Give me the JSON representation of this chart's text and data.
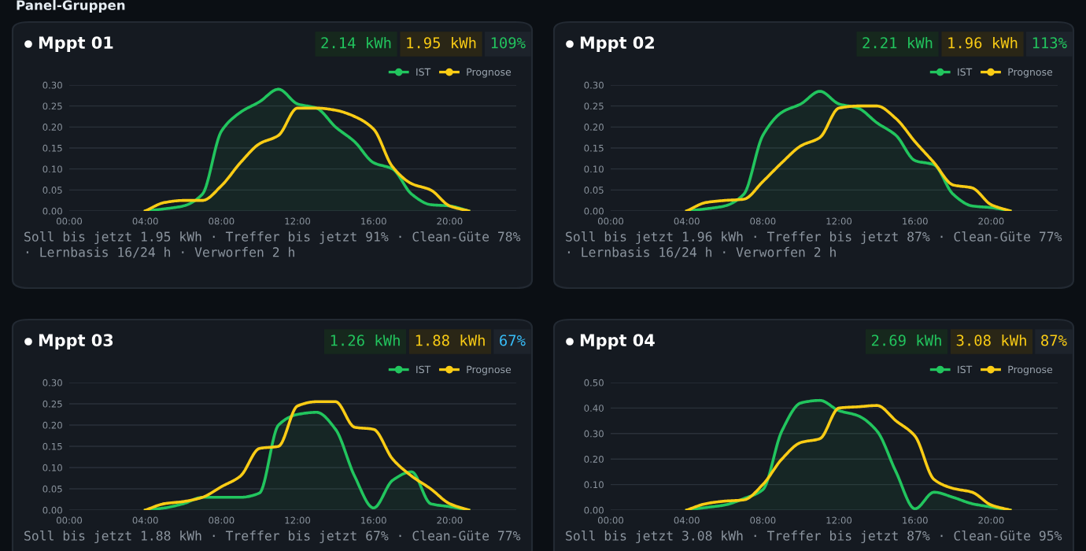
{
  "chart_data": [
    {
      "type": "line",
      "title": "Mppt 01",
      "annotations": [
        "Panel-Gruppen",
        "2.14 kWh",
        "1.95 kWh",
        "109%",
        "Soll bis jetzt 1.95 kWh · Treffer bis jetzt 91% · Clean-Güte 78% · Lernbasis 16/24 h · Verworfen 2 h"
      ],
      "x": [
        4,
        5,
        6,
        7,
        8,
        9,
        10,
        11,
        12,
        13,
        14,
        15,
        16,
        17,
        18,
        19,
        20,
        21
      ],
      "series": [
        {
          "name": "IST",
          "type": "area",
          "color": "#22c55e",
          "values": [
            0,
            0.005,
            0.012,
            0.04,
            0.19,
            0.235,
            0.26,
            0.29,
            0.255,
            0.245,
            0.2,
            0.165,
            0.115,
            0.1,
            0.04,
            0.015,
            0.012,
            0
          ]
        },
        {
          "name": "Prognose",
          "color": "#facc15",
          "values": [
            0,
            0.02,
            0.025,
            0.025,
            0.06,
            0.115,
            0.16,
            0.18,
            0.245,
            0.245,
            0.24,
            0.225,
            0.195,
            0.105,
            0.065,
            0.05,
            0.012,
            0
          ]
        }
      ],
      "xlim": [
        0,
        23.5
      ],
      "xticks": [
        {
          "value": 0,
          "label": "00:00"
        },
        {
          "value": 4,
          "label": "04:00"
        },
        {
          "value": 8,
          "label": "08:00"
        },
        {
          "value": 12,
          "label": "12:00"
        },
        {
          "value": 16,
          "label": "16:00"
        },
        {
          "value": 20,
          "label": "20:00"
        }
      ],
      "ylim": [
        0,
        0.3
      ],
      "yticks": [
        {
          "value": 0,
          "label": "0.00"
        },
        {
          "value": 0.05,
          "label": "0.05"
        },
        {
          "value": 0.1,
          "label": "0.10"
        },
        {
          "value": 0.15,
          "label": "0.15"
        },
        {
          "value": 0.2,
          "label": "0.20"
        },
        {
          "value": 0.25,
          "label": "0.25"
        },
        {
          "value": 0.3,
          "label": "0.30"
        }
      ],
      "grid": "y",
      "legend": "top right"
    },
    {
      "type": "line",
      "title": "Mppt 02",
      "annotations": [
        "2.21 kWh",
        "1.96 kWh",
        "113%",
        "Soll bis jetzt 1.96 kWh · Treffer bis jetzt 87% · Clean-Güte 77% · Lernbasis 16/24 h · Verworfen 2 h"
      ],
      "x": [
        4,
        5,
        6,
        7,
        8,
        9,
        10,
        11,
        12,
        13,
        14,
        15,
        16,
        17,
        18,
        19,
        20,
        21
      ],
      "series": [
        {
          "name": "IST",
          "type": "area",
          "color": "#22c55e",
          "values": [
            0,
            0.005,
            0.012,
            0.04,
            0.18,
            0.235,
            0.255,
            0.285,
            0.255,
            0.245,
            0.21,
            0.18,
            0.12,
            0.11,
            0.04,
            0.012,
            0.008,
            0
          ]
        },
        {
          "name": "Prognose",
          "color": "#facc15",
          "values": [
            0,
            0.02,
            0.025,
            0.028,
            0.07,
            0.115,
            0.155,
            0.175,
            0.245,
            0.25,
            0.25,
            0.22,
            0.165,
            0.115,
            0.062,
            0.055,
            0.015,
            0
          ]
        }
      ],
      "xlim": [
        0,
        23.5
      ],
      "xticks": [
        {
          "value": 0,
          "label": "00:00"
        },
        {
          "value": 4,
          "label": "04:00"
        },
        {
          "value": 8,
          "label": "08:00"
        },
        {
          "value": 12,
          "label": "12:00"
        },
        {
          "value": 16,
          "label": "16:00"
        },
        {
          "value": 20,
          "label": "20:00"
        }
      ],
      "ylim": [
        0,
        0.3
      ],
      "yticks": [
        {
          "value": 0,
          "label": "0.00"
        },
        {
          "value": 0.05,
          "label": "0.05"
        },
        {
          "value": 0.1,
          "label": "0.10"
        },
        {
          "value": 0.15,
          "label": "0.15"
        },
        {
          "value": 0.2,
          "label": "0.20"
        },
        {
          "value": 0.25,
          "label": "0.25"
        },
        {
          "value": 0.3,
          "label": "0.30"
        }
      ],
      "grid": "y",
      "legend": "top right"
    },
    {
      "type": "line",
      "title": "Mppt 03",
      "annotations": [
        "1.26 kWh",
        "1.88 kWh",
        "67%",
        "Soll bis jetzt 1.88 kWh · Treffer bis jetzt 67% · Clean-Güte 77%"
      ],
      "x": [
        4,
        5,
        6,
        7,
        8,
        9,
        10,
        11,
        12,
        13,
        14,
        15,
        16,
        17,
        18,
        19,
        20,
        21
      ],
      "series": [
        {
          "name": "IST",
          "type": "area",
          "color": "#22c55e",
          "values": [
            0,
            0.005,
            0.015,
            0.03,
            0.03,
            0.03,
            0.04,
            0.2,
            0.225,
            0.23,
            0.19,
            0.08,
            0.005,
            0.07,
            0.09,
            0.015,
            0.008,
            0
          ]
        },
        {
          "name": "Prognose",
          "color": "#facc15",
          "values": [
            0,
            0.015,
            0.02,
            0.03,
            0.055,
            0.08,
            0.145,
            0.15,
            0.245,
            0.255,
            0.255,
            0.195,
            0.19,
            0.12,
            0.08,
            0.05,
            0.015,
            0
          ]
        }
      ],
      "xlim": [
        0,
        23.5
      ],
      "xticks": [
        {
          "value": 0,
          "label": "00:00"
        },
        {
          "value": 4,
          "label": "04:00"
        },
        {
          "value": 8,
          "label": "08:00"
        },
        {
          "value": 12,
          "label": "12:00"
        },
        {
          "value": 16,
          "label": "16:00"
        },
        {
          "value": 20,
          "label": "20:00"
        }
      ],
      "ylim": [
        0,
        0.3
      ],
      "yticks": [
        {
          "value": 0,
          "label": "0.00"
        },
        {
          "value": 0.05,
          "label": "0.05"
        },
        {
          "value": 0.1,
          "label": "0.10"
        },
        {
          "value": 0.15,
          "label": "0.15"
        },
        {
          "value": 0.2,
          "label": "0.20"
        },
        {
          "value": 0.25,
          "label": "0.25"
        },
        {
          "value": 0.3,
          "label": "0.30"
        }
      ],
      "grid": "y",
      "legend": "top right"
    },
    {
      "type": "line",
      "title": "Mppt 04",
      "annotations": [
        "2.69 kWh",
        "3.08 kWh",
        "87%",
        "Soll bis jetzt 3.08 kWh · Treffer bis jetzt 87% · Clean-Güte 95%"
      ],
      "x": [
        4,
        5,
        6,
        7,
        8,
        9,
        10,
        11,
        12,
        13,
        14,
        15,
        16,
        17,
        18,
        19,
        20,
        21
      ],
      "series": [
        {
          "name": "IST",
          "type": "area",
          "color": "#22c55e",
          "values": [
            0,
            0.01,
            0.02,
            0.045,
            0.08,
            0.31,
            0.42,
            0.43,
            0.39,
            0.37,
            0.31,
            0.15,
            0.005,
            0.07,
            0.05,
            0.025,
            0.012,
            0
          ]
        },
        {
          "name": "Prognose",
          "color": "#facc15",
          "values": [
            0,
            0.025,
            0.035,
            0.04,
            0.1,
            0.2,
            0.265,
            0.28,
            0.4,
            0.405,
            0.41,
            0.35,
            0.29,
            0.12,
            0.085,
            0.07,
            0.02,
            0
          ]
        }
      ],
      "xlim": [
        0,
        23.5
      ],
      "xticks": [
        {
          "value": 0,
          "label": "00:00"
        },
        {
          "value": 4,
          "label": "04:00"
        },
        {
          "value": 8,
          "label": "08:00"
        },
        {
          "value": 12,
          "label": "12:00"
        },
        {
          "value": 16,
          "label": "16:00"
        },
        {
          "value": 20,
          "label": "20:00"
        }
      ],
      "ylim": [
        0,
        0.5
      ],
      "yticks": [
        {
          "value": 0,
          "label": "0.00"
        },
        {
          "value": 0.1,
          "label": "0.10"
        },
        {
          "value": 0.2,
          "label": "0.20"
        },
        {
          "value": 0.3,
          "label": "0.30"
        },
        {
          "value": 0.4,
          "label": "0.40"
        },
        {
          "value": 0.5,
          "label": "0.50"
        }
      ],
      "grid": "y",
      "legend": "top right"
    }
  ]
}
